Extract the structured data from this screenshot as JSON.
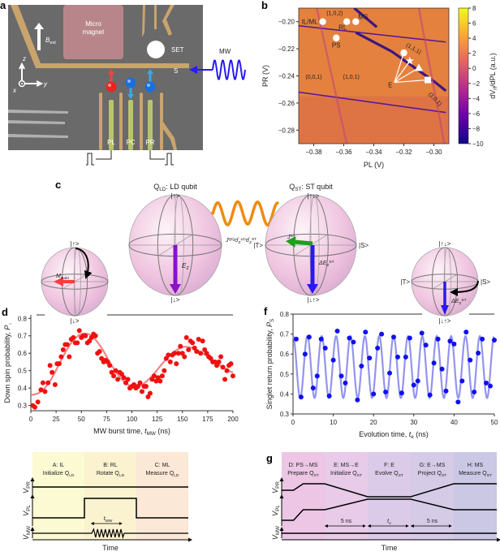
{
  "panel_labels": {
    "a": "a",
    "b": "b",
    "c": "c",
    "d": "d",
    "e": "e",
    "f": "f",
    "g": "g"
  },
  "panel_a": {
    "micromagnet_line1": "Micro",
    "micromagnet_line2": "magnet",
    "set": "SET",
    "s": "S",
    "mw": "MW",
    "bext_main": "B",
    "bext_sub": "ext",
    "axis_z": "z",
    "axis_y": "y",
    "axis_x": "x",
    "gates": [
      "PL",
      "PC",
      "PR"
    ],
    "spins": [
      {
        "color": "#e8251e",
        "arrow_color": "#ff4040",
        "dir": "up"
      },
      {
        "color": "#1a6fe0",
        "arrow_color": "#38a8f0",
        "dir": "down"
      },
      {
        "color": "#1a6fe0",
        "arrow_color": "#38a8f0",
        "dir": "up"
      }
    ],
    "colors": {
      "gate": "#c9a46c",
      "plunger": "#b9c46a",
      "magnet": "#b8868a",
      "substrate": "#6a6a6a",
      "mw": "#2a1af0"
    }
  },
  "panel_c": {
    "ld_title_main": "Q",
    "ld_title_sub": "LD",
    "ld_title_rest": ": LD qubit",
    "st_title_main": "Q",
    "st_title_sub": "ST",
    "st_title_rest": ": ST qubit",
    "up": "|↑>",
    "down": "|↓>",
    "updown": "|↑↓>",
    "downup": "|↓↑>",
    "t": "|T>",
    "s": "|S>",
    "ez_main": "E",
    "ez_sub": "Z",
    "jst_main": "J",
    "jst_sup": "ST",
    "dez_main": "ΔE",
    "dez_sub": "Z",
    "dez_sup": "ST",
    "mrabi_main": "M",
    "mrabi_sub": "Rabi",
    "coupling_main": "J",
    "coupling_sup": "QQ",
    "coupling_sigma1": "σ̂",
    "coupling_sub1": "Z",
    "coupling_sup1": "LD",
    "coupling_sigma2": "σ̂",
    "coupling_sub2": "Z",
    "coupling_sup2": "ST",
    "colors": {
      "ez_arrow": "#8a12c8",
      "dez_arrow": "#2a18f0",
      "jst_arrow": "#1aa01a",
      "rabi_arrow": "#ff3b3b",
      "coupling": "#f08a10"
    }
  },
  "panel_e": {
    "sections": [
      {
        "l1": "A: IL",
        "l2_main": "Initialize Q",
        "l2_sub": "LD",
        "color": "#fbfad2"
      },
      {
        "l1": "B: RL",
        "l2_main": "Rotate Q",
        "l2_sub": "LD",
        "color": "#fbf2cf"
      },
      {
        "l1": "C: ML",
        "l2_main": "Measure Q",
        "l2_sub": "LD",
        "color": "#fce8d6"
      }
    ],
    "vpr_main": "V",
    "vpr_sub": "PR",
    "vpl_main": "V",
    "vpl_sub": "PL",
    "vmw_main": "V",
    "vmw_sub": "MW",
    "tmw_main": "t",
    "tmw_sub": "MW",
    "time": "Time"
  },
  "panel_g": {
    "sections": [
      {
        "l1": "D: PS→MS",
        "l2_main": "Prepare Q",
        "l2_sub": "ST",
        "color": "#ecc6e4"
      },
      {
        "l1": "E: MS→E",
        "l2_main": "Initialize Q",
        "l2_sub": "ST",
        "color": "#e7cbe8"
      },
      {
        "l1": "F: E",
        "l2_main": "Evolve Q",
        "l2_sub": "ST",
        "color": "#dccbe8"
      },
      {
        "l1": "G: E→MS",
        "l2_main": "Project Q",
        "l2_sub": "ST",
        "color": "#d5cbe7"
      },
      {
        "l1": "H: MS",
        "l2_main": "Measure Q",
        "l2_sub": "ST",
        "color": "#cbc8e5"
      }
    ],
    "vpr_main": "V",
    "vpr_sub": "PR",
    "vpl_main": "V",
    "vpl_sub": "PL",
    "vmw_main": "V",
    "vmw_sub": "MW",
    "span1": "5 ns",
    "span2_main": "t",
    "span2_sub": "e",
    "span3": "5 ns",
    "time": "Time"
  },
  "chart_data": [
    {
      "panel": "b",
      "type": "heatmap",
      "xlabel": "PL (V)",
      "ylabel": "PR (V)",
      "xlim": [
        -0.39,
        -0.29
      ],
      "ylim": [
        -0.29,
        -0.19
      ],
      "xticks": [
        -0.38,
        -0.36,
        -0.34,
        -0.32,
        -0.3
      ],
      "xtick_labels": [
        "−0.38",
        "−0.36",
        "−0.34",
        "−0.32",
        "−0.30"
      ],
      "yticks": [
        -0.2,
        -0.22,
        -0.24,
        -0.26,
        -0.28
      ],
      "ytick_labels": [
        "−0.20",
        "−0.22",
        "−0.24",
        "−0.26",
        "−0.28"
      ],
      "colorbar": {
        "label_main": "dV",
        "label_sub": "rf",
        "label_rest": "/dPL (a.u.)",
        "range": [
          -10,
          8
        ],
        "ticks": [
          8,
          6,
          4,
          2,
          0,
          -2,
          -4,
          -6,
          -8,
          -10
        ],
        "tick_labels": [
          "8",
          "6",
          "4",
          "2",
          "0",
          "−2",
          "−4",
          "−6",
          "−8",
          "−10"
        ],
        "colormap": [
          "#0d0887",
          "#6a00a8",
          "#b12a90",
          "#e16462",
          "#fca636",
          "#f0f921"
        ]
      },
      "background_value_color": "#e5813e",
      "transition_lines": [
        {
          "points": [
            [
              -0.352,
              -0.208
            ],
            [
              -0.328,
              -0.222
            ],
            [
              -0.3,
              -0.244
            ],
            [
              -0.292,
              -0.251
            ]
          ],
          "strength": "strong"
        },
        {
          "points": [
            [
              -0.353,
              -0.19
            ],
            [
              -0.338,
              -0.204
            ]
          ],
          "strength": "strong"
        },
        {
          "points": [
            [
              -0.39,
              -0.203
            ],
            [
              -0.292,
              -0.215
            ]
          ],
          "strength": "medium"
        },
        {
          "points": [
            [
              -0.39,
              -0.252
            ],
            [
              -0.292,
              -0.267
            ]
          ],
          "strength": "medium"
        },
        {
          "points": [
            [
              -0.378,
              -0.19
            ],
            [
              -0.358,
              -0.29
            ]
          ],
          "strength": "faint"
        },
        {
          "points": [
            [
              -0.31,
              -0.19
            ],
            [
              -0.293,
              -0.29
            ]
          ],
          "strength": "faint"
        }
      ],
      "points": [
        {
          "label": "IL/ML",
          "pl": -0.374,
          "pr": -0.2,
          "marker": "circle",
          "label_side": "left"
        },
        {
          "label": "RL",
          "pl": -0.358,
          "pr": -0.2,
          "marker": "circle",
          "label_side": "below-left"
        },
        {
          "label": "MS",
          "pl": -0.352,
          "pr": -0.2,
          "marker": "circle",
          "label_side": "above-right"
        },
        {
          "label": "PS",
          "pl": -0.365,
          "pr": -0.212,
          "marker": "circle",
          "label_side": "below"
        },
        {
          "label": "",
          "pl": -0.32,
          "pr": -0.223,
          "marker": "circle"
        },
        {
          "label": "",
          "pl": -0.316,
          "pr": -0.229,
          "marker": "star"
        },
        {
          "label": "",
          "pl": -0.31,
          "pr": -0.234,
          "marker": "triangle"
        },
        {
          "label": "",
          "pl": -0.304,
          "pr": -0.243,
          "marker": "square"
        }
      ],
      "e_label": {
        "text": "E",
        "pl": -0.329,
        "pr": -0.246
      },
      "region_labels": [
        {
          "text": "(1,0,2)",
          "pl": -0.366,
          "pr": -0.195,
          "rotate": 0
        },
        {
          "text": "(1,1,1)",
          "pl": -0.314,
          "pr": -0.221,
          "rotate": 30
        },
        {
          "text": "(0,0,1)",
          "pl": -0.38,
          "pr": -0.242,
          "rotate": 0
        },
        {
          "text": "(1,0,1)",
          "pl": -0.355,
          "pr": -0.242,
          "rotate": 0
        },
        {
          "text": "(2,0,1)",
          "pl": -0.3,
          "pr": -0.258,
          "rotate": 45
        }
      ]
    },
    {
      "panel": "d",
      "type": "scatter",
      "xlabel_main": "MW burst time, ",
      "xlabel_var": "t",
      "xlabel_sub": "MW",
      "xlabel_unit": " (ns)",
      "ylabel_main": "Down spin probability, ",
      "ylabel_var": "P",
      "ylabel_sub": "↓",
      "xlim": [
        0,
        200
      ],
      "ylim": [
        0.27,
        0.82
      ],
      "xticks": [
        0,
        25,
        50,
        75,
        100,
        125,
        150,
        175,
        200
      ],
      "yticks": [
        0.3,
        0.4,
        0.5,
        0.6,
        0.7,
        0.8
      ],
      "point_color": "#f01010",
      "fit_color": "#f07070",
      "x": [
        2,
        4,
        7,
        10,
        12,
        14,
        17,
        19,
        21,
        24,
        26,
        28,
        30,
        32,
        34,
        36,
        38,
        40,
        42,
        44,
        46,
        48,
        50,
        52,
        54,
        56,
        58,
        60,
        62,
        64,
        66,
        68,
        70,
        72,
        74,
        76,
        78,
        80,
        82,
        84,
        86,
        88,
        90,
        92,
        94,
        96,
        98,
        100,
        102,
        104,
        106,
        108,
        110,
        112,
        114,
        116,
        118,
        120,
        122,
        124,
        126,
        128,
        130,
        132,
        134,
        136,
        138,
        140,
        142,
        144,
        146,
        148,
        150,
        152,
        154,
        156,
        158,
        160,
        162,
        164,
        166,
        168,
        170,
        172,
        174,
        176,
        178,
        180,
        182,
        184,
        186,
        188,
        190,
        192,
        194,
        196,
        198,
        200
      ],
      "y": [
        0.3,
        0.29,
        0.32,
        0.39,
        0.43,
        0.38,
        0.43,
        0.53,
        0.49,
        0.42,
        0.54,
        0.54,
        0.58,
        0.62,
        0.65,
        0.65,
        0.58,
        0.68,
        0.69,
        0.66,
        0.66,
        0.73,
        0.69,
        0.7,
        0.7,
        0.66,
        0.67,
        0.69,
        0.71,
        0.7,
        0.6,
        0.61,
        0.57,
        0.55,
        0.56,
        0.55,
        0.53,
        0.49,
        0.47,
        0.5,
        0.45,
        0.49,
        0.48,
        0.46,
        0.43,
        0.45,
        0.4,
        0.41,
        0.42,
        0.4,
        0.41,
        0.43,
        0.38,
        0.41,
        0.41,
        0.35,
        0.37,
        0.45,
        0.47,
        0.44,
        0.46,
        0.44,
        0.47,
        0.5,
        0.57,
        0.59,
        0.55,
        0.59,
        0.6,
        0.54,
        0.6,
        0.64,
        0.6,
        0.58,
        0.69,
        0.62,
        0.67,
        0.66,
        0.63,
        0.61,
        0.68,
        0.6,
        0.67,
        0.62,
        0.6,
        0.58,
        0.57,
        0.55,
        0.55,
        0.53,
        0.55,
        0.58,
        0.52,
        0.45,
        0.5,
        0.53,
        0.54,
        0.47
      ],
      "fit": {
        "x": [
          0,
          10,
          20,
          30,
          40,
          50,
          60,
          70,
          80,
          90,
          100,
          110,
          120,
          130,
          140,
          150,
          160,
          170,
          180,
          190,
          200
        ],
        "y": [
          0.36,
          0.38,
          0.45,
          0.56,
          0.66,
          0.71,
          0.7,
          0.63,
          0.53,
          0.45,
          0.41,
          0.42,
          0.47,
          0.54,
          0.6,
          0.635,
          0.63,
          0.6,
          0.56,
          0.52,
          0.49
        ]
      }
    },
    {
      "panel": "f",
      "type": "scatter",
      "xlabel_main": "Evolution time, ",
      "xlabel_var": "t",
      "xlabel_sub": "e",
      "xlabel_unit": " (ns)",
      "ylabel_main": "Singlet return probability, ",
      "ylabel_var": "P",
      "ylabel_sub": "S",
      "xlim": [
        0,
        50
      ],
      "ylim": [
        0.3,
        0.8
      ],
      "xticks": [
        0,
        10,
        20,
        30,
        40,
        50
      ],
      "yticks": [
        0.3,
        0.4,
        0.5,
        0.6,
        0.7,
        0.8
      ],
      "point_color": "#1010f0",
      "fit_color": "#8080f0",
      "x": [
        0.8,
        2,
        3,
        4,
        5,
        6,
        7,
        8,
        9,
        10,
        11,
        12,
        13,
        14,
        15,
        16,
        17,
        18,
        19,
        20,
        21,
        22,
        23,
        24,
        25,
        26,
        27,
        28,
        29,
        30,
        31,
        32,
        33,
        34,
        35,
        36,
        37,
        38,
        39,
        40,
        41,
        42,
        43,
        44,
        45,
        46,
        47,
        48,
        49,
        50
      ],
      "y": [
        0.675,
        0.385,
        0.6,
        0.685,
        0.43,
        0.49,
        0.675,
        0.63,
        0.39,
        0.57,
        0.715,
        0.49,
        0.455,
        0.68,
        0.66,
        0.37,
        0.54,
        0.71,
        0.58,
        0.4,
        0.63,
        0.7,
        0.41,
        0.505,
        0.685,
        0.585,
        0.405,
        0.585,
        0.68,
        0.445,
        0.465,
        0.705,
        0.645,
        0.395,
        0.555,
        0.675,
        0.525,
        0.415,
        0.665,
        0.65,
        0.36,
        0.465,
        0.71,
        0.57,
        0.41,
        0.605,
        0.675,
        0.455,
        0.44,
        0.67
      ],
      "fit": {
        "form": "offset + amplitude*cos(2*pi*t/period)",
        "offset": 0.535,
        "amplitude": 0.155,
        "period_ns": 3.57
      }
    }
  ]
}
